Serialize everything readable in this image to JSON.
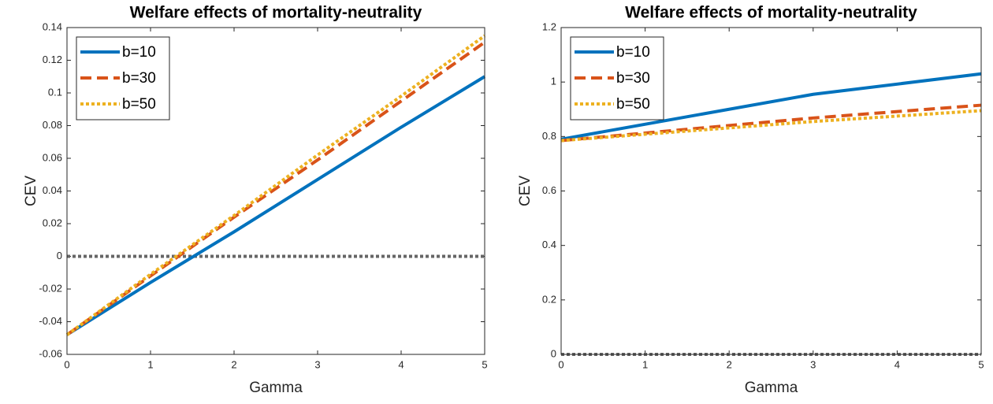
{
  "chart_data": [
    {
      "type": "line",
      "title": "Welfare effects of mortality-neutrality",
      "x_label": "Gamma",
      "y_label": "CEV",
      "x": [
        0,
        1,
        2,
        3,
        4,
        5
      ],
      "series": [
        {
          "name": "b=10",
          "color": "#0072BD",
          "line_style": "solid",
          "values": [
            -0.048,
            -0.016,
            0.015,
            0.047,
            0.079,
            0.11
          ]
        },
        {
          "name": "b=30",
          "color": "#D95319",
          "line_style": "dashed",
          "values": [
            -0.048,
            -0.012,
            0.024,
            0.059,
            0.095,
            0.131
          ]
        },
        {
          "name": "b=50",
          "color": "#EDB120",
          "line_style": "dotted",
          "values": [
            -0.048,
            -0.011,
            0.025,
            0.062,
            0.098,
            0.135
          ]
        }
      ],
      "hline": {
        "value": 0,
        "color": "#666666",
        "line_style": "dotted"
      },
      "xlim": [
        0,
        5
      ],
      "xticks": [
        0,
        1,
        2,
        3,
        4,
        5
      ],
      "ylim": [
        -0.06,
        0.14
      ],
      "yticks": [
        -0.06,
        -0.04,
        -0.02,
        0,
        0.02,
        0.04,
        0.06,
        0.08,
        0.1,
        0.12,
        0.14
      ],
      "legend": "northwest"
    },
    {
      "type": "line",
      "title": "Welfare effects of mortality-neutrality",
      "x_label": "Gamma",
      "y_label": "CEV",
      "x": [
        0,
        3,
        5
      ],
      "series": [
        {
          "name": "b=10",
          "color": "#0072BD",
          "line_style": "solid",
          "values": [
            0.79,
            0.955,
            1.03
          ]
        },
        {
          "name": "b=30",
          "color": "#D95319",
          "line_style": "dashed",
          "values": [
            0.785,
            0.868,
            0.915
          ]
        },
        {
          "name": "b=50",
          "color": "#EDB120",
          "line_style": "dotted",
          "values": [
            0.785,
            0.855,
            0.895
          ]
        }
      ],
      "hline": {
        "value": 0,
        "color": "#666666",
        "line_style": "dotted"
      },
      "xlim": [
        0,
        5
      ],
      "xticks": [
        0,
        1,
        2,
        3,
        4,
        5
      ],
      "ylim": [
        0,
        1.2
      ],
      "yticks": [
        0,
        0.2,
        0.4,
        0.6,
        0.8,
        1,
        1.2
      ],
      "legend": "northwest"
    }
  ]
}
